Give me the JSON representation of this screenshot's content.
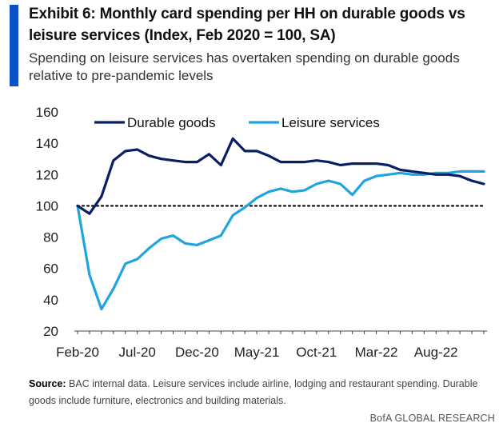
{
  "header": {
    "title": "Exhibit 6: Monthly card spending per HH on durable goods vs leisure services (Index, Feb 2020 = 100, SA)",
    "subtitle": "Spending on leisure services has overtaken spending on durable goods relative to pre-pandemic levels"
  },
  "footer": {
    "source_label": "Source:",
    "source_text": "BAC internal data. Leisure services include airline, lodging and restaurant spending. Durable goods include furniture, electronics and building materials.",
    "brand": "BofA GLOBAL RESEARCH"
  },
  "colors": {
    "accent": "#0b52c9",
    "durable": "#0a1f63",
    "leisure": "#20a4e0",
    "reference": "#000000"
  },
  "chart_data": {
    "type": "line",
    "x": [
      "Feb-20",
      "Mar-20",
      "Apr-20",
      "May-20",
      "Jun-20",
      "Jul-20",
      "Aug-20",
      "Sep-20",
      "Oct-20",
      "Nov-20",
      "Dec-20",
      "Jan-21",
      "Feb-21",
      "Mar-21",
      "Apr-21",
      "May-21",
      "Jun-21",
      "Jul-21",
      "Aug-21",
      "Sep-21",
      "Oct-21",
      "Nov-21",
      "Dec-21",
      "Jan-22",
      "Feb-22",
      "Mar-22",
      "Apr-22",
      "May-22",
      "Jun-22",
      "Jul-22",
      "Aug-22",
      "Sep-22",
      "Oct-22",
      "Nov-22",
      "Dec-22"
    ],
    "x_tick_labels": [
      "Feb-20",
      "Jul-20",
      "Dec-20",
      "May-21",
      "Oct-21",
      "Mar-22",
      "Aug-22"
    ],
    "series": [
      {
        "name": "Durable goods",
        "color": "#0a1f63",
        "values": [
          100,
          95,
          106,
          129,
          135,
          136,
          132,
          130,
          129,
          128,
          128,
          133,
          126,
          143,
          135,
          135,
          132,
          128,
          128,
          128,
          129,
          128,
          126,
          127,
          127,
          127,
          126,
          123,
          122,
          121,
          120,
          120,
          119,
          116,
          114
        ]
      },
      {
        "name": "Leisure services",
        "color": "#20a4e0",
        "values": [
          100,
          56,
          34,
          47,
          63,
          66,
          73,
          79,
          81,
          76,
          75,
          78,
          81,
          94,
          99,
          105,
          109,
          111,
          109,
          110,
          114,
          116,
          114,
          107,
          116,
          119,
          120,
          121,
          120,
          120,
          121,
          121,
          122,
          122,
          122
        ]
      }
    ],
    "reference_line": {
      "y": 100,
      "style": "dotted"
    },
    "ylim": [
      20,
      160
    ],
    "y_ticks": [
      20,
      40,
      60,
      80,
      100,
      120,
      140,
      160
    ],
    "xlabel": "",
    "ylabel": "",
    "grid": false,
    "legend": "top-left"
  }
}
